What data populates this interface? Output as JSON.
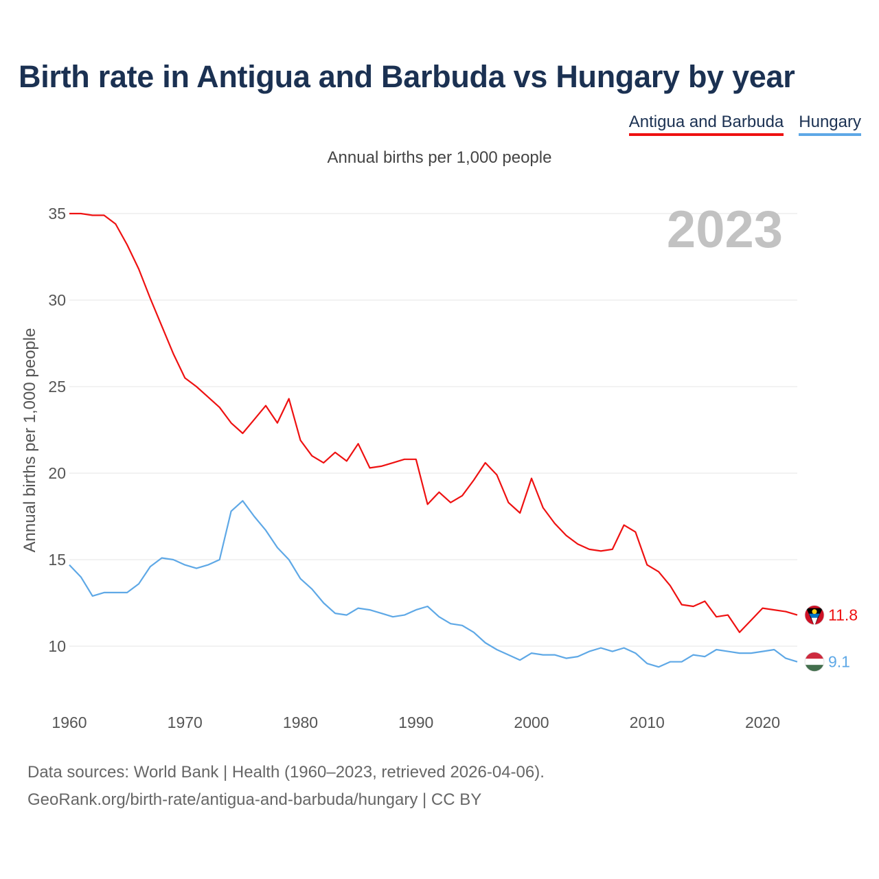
{
  "title": "Birth rate in Antigua and Barbuda vs Hungary by year",
  "subtitle": "Annual births per 1,000 people",
  "legend": [
    {
      "label": "Antigua and Barbuda",
      "color": "#ee1111"
    },
    {
      "label": "Hungary",
      "color": "#5ea8e6"
    }
  ],
  "source": {
    "line1": "Data sources: World Bank | Health (1960–2023, retrieved 2026-04-06).",
    "line2": "GeoRank.org/birth-rate/antigua-and-barbuda/hungary | CC BY"
  },
  "chart_data": {
    "type": "line",
    "title": "Birth rate in Antigua and Barbuda vs Hungary by year",
    "ylabel": "Annual births per 1,000 people",
    "xlabel": "",
    "year_label": "2023",
    "xlim": [
      1960,
      2023
    ],
    "ylim": [
      7.5,
      36.5
    ],
    "x_ticks": [
      1960,
      1970,
      1980,
      1990,
      2000,
      2010,
      2020
    ],
    "y_ticks": [
      10,
      15,
      20,
      25,
      30,
      35
    ],
    "grid": true,
    "x": [
      1960,
      1961,
      1962,
      1963,
      1964,
      1965,
      1966,
      1967,
      1968,
      1969,
      1970,
      1971,
      1972,
      1973,
      1974,
      1975,
      1976,
      1977,
      1978,
      1979,
      1980,
      1981,
      1982,
      1983,
      1984,
      1985,
      1986,
      1987,
      1988,
      1989,
      1990,
      1991,
      1992,
      1993,
      1994,
      1995,
      1996,
      1997,
      1998,
      1999,
      2000,
      2001,
      2002,
      2003,
      2004,
      2005,
      2006,
      2007,
      2008,
      2009,
      2010,
      2011,
      2012,
      2013,
      2014,
      2015,
      2016,
      2017,
      2018,
      2019,
      2020,
      2021,
      2022,
      2023
    ],
    "series": [
      {
        "name": "Antigua and Barbuda",
        "color": "#ee1111",
        "end_label": "11.8",
        "values": [
          35.0,
          35.0,
          34.9,
          34.9,
          34.4,
          33.2,
          31.8,
          30.1,
          28.5,
          26.9,
          25.5,
          25.0,
          24.4,
          23.8,
          22.9,
          22.3,
          23.1,
          23.9,
          22.9,
          24.3,
          21.9,
          21.0,
          20.6,
          21.2,
          20.7,
          21.7,
          20.3,
          20.4,
          20.6,
          20.8,
          20.8,
          18.2,
          18.9,
          18.3,
          18.7,
          19.6,
          20.6,
          19.9,
          18.3,
          17.7,
          19.7,
          18.0,
          17.1,
          16.4,
          15.9,
          15.6,
          15.5,
          15.6,
          17.0,
          16.6,
          14.7,
          14.3,
          13.5,
          12.4,
          12.3,
          12.6,
          11.7,
          11.8,
          10.8,
          11.5,
          12.2,
          12.1,
          12.0,
          11.8
        ]
      },
      {
        "name": "Hungary",
        "color": "#5ea8e6",
        "end_label": "9.1",
        "values": [
          14.7,
          14.0,
          12.9,
          13.1,
          13.1,
          13.1,
          13.6,
          14.6,
          15.1,
          15.0,
          14.7,
          14.5,
          14.7,
          15.0,
          17.8,
          18.4,
          17.5,
          16.7,
          15.7,
          15.0,
          13.9,
          13.3,
          12.5,
          11.9,
          11.8,
          12.2,
          12.1,
          11.9,
          11.7,
          11.8,
          12.1,
          12.3,
          11.7,
          11.3,
          11.2,
          10.8,
          10.2,
          9.8,
          9.5,
          9.2,
          9.6,
          9.5,
          9.5,
          9.3,
          9.4,
          9.7,
          9.9,
          9.7,
          9.9,
          9.6,
          9.0,
          8.8,
          9.1,
          9.1,
          9.5,
          9.4,
          9.8,
          9.7,
          9.6,
          9.6,
          9.7,
          9.8,
          9.3,
          9.1
        ]
      }
    ]
  }
}
